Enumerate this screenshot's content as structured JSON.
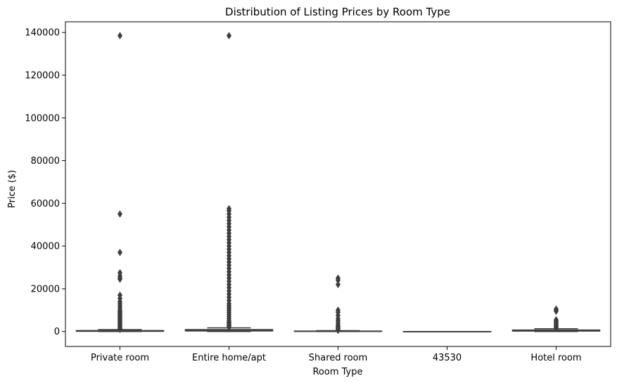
{
  "chart_data": {
    "type": "box",
    "title": "Distribution of Listing Prices by Room Type",
    "xlabel": "Room Type",
    "ylabel": "Price ($)",
    "ylim": [
      -7000,
      145000
    ],
    "yticks": [
      0,
      20000,
      40000,
      60000,
      80000,
      100000,
      120000,
      140000
    ],
    "categories": [
      "Private room",
      "Entire home/apt",
      "Shared room",
      "43530",
      "Hotel room"
    ],
    "grid": false,
    "color": "#3d3d3d",
    "boxes": [
      {
        "category": "Private room",
        "q1": 100,
        "median": 200,
        "q3": 450,
        "whisker_low": 0,
        "whisker_high": 900,
        "outliers": [
          138500,
          55000,
          37000,
          27500,
          26000,
          25000,
          24500,
          17000,
          15500,
          14000,
          13000,
          12000,
          11000,
          10000,
          9500,
          9000,
          8500,
          8000,
          7500,
          7000,
          6500,
          6000,
          5500,
          5000,
          4500,
          4000,
          3500,
          3000,
          2500,
          2000,
          1500,
          1200,
          1000
        ]
      },
      {
        "category": "Entire home/apt",
        "q1": 250,
        "median": 500,
        "q3": 900,
        "whisker_low": 0,
        "whisker_high": 1700,
        "outliers": [
          138500,
          57500,
          56500,
          55000,
          53500,
          52000,
          50500,
          49000,
          47500,
          46000,
          44500,
          43000,
          41500,
          40000,
          38500,
          37000,
          35500,
          34000,
          32500,
          31000,
          29500,
          28000,
          26500,
          25000,
          23500,
          22000,
          20500,
          19000,
          17500,
          16000,
          14500,
          13000,
          12000,
          11000,
          10000,
          9000,
          8000,
          7000,
          6000,
          5000,
          4500,
          4000,
          3500,
          3000,
          2500,
          2000
        ]
      },
      {
        "category": "Shared room",
        "q1": 40,
        "median": 80,
        "q3": 200,
        "whisker_low": 0,
        "whisker_high": 400,
        "outliers": [
          25000,
          24000,
          22000,
          10000,
          9000,
          7500,
          6000,
          5000,
          4000,
          3000,
          2500,
          2000,
          1500,
          1000,
          700,
          500
        ]
      },
      {
        "category": "43530",
        "q1": 0,
        "median": 0,
        "q3": 0,
        "whisker_low": 0,
        "whisker_high": 0,
        "outliers": []
      },
      {
        "category": "Hotel room",
        "q1": 200,
        "median": 400,
        "q3": 700,
        "whisker_low": 0,
        "whisker_high": 1300,
        "outliers": [
          10500,
          10000,
          9500,
          5500,
          5000,
          4500,
          4000,
          3500,
          3000,
          2500,
          2000,
          1800,
          1500
        ]
      }
    ]
  }
}
